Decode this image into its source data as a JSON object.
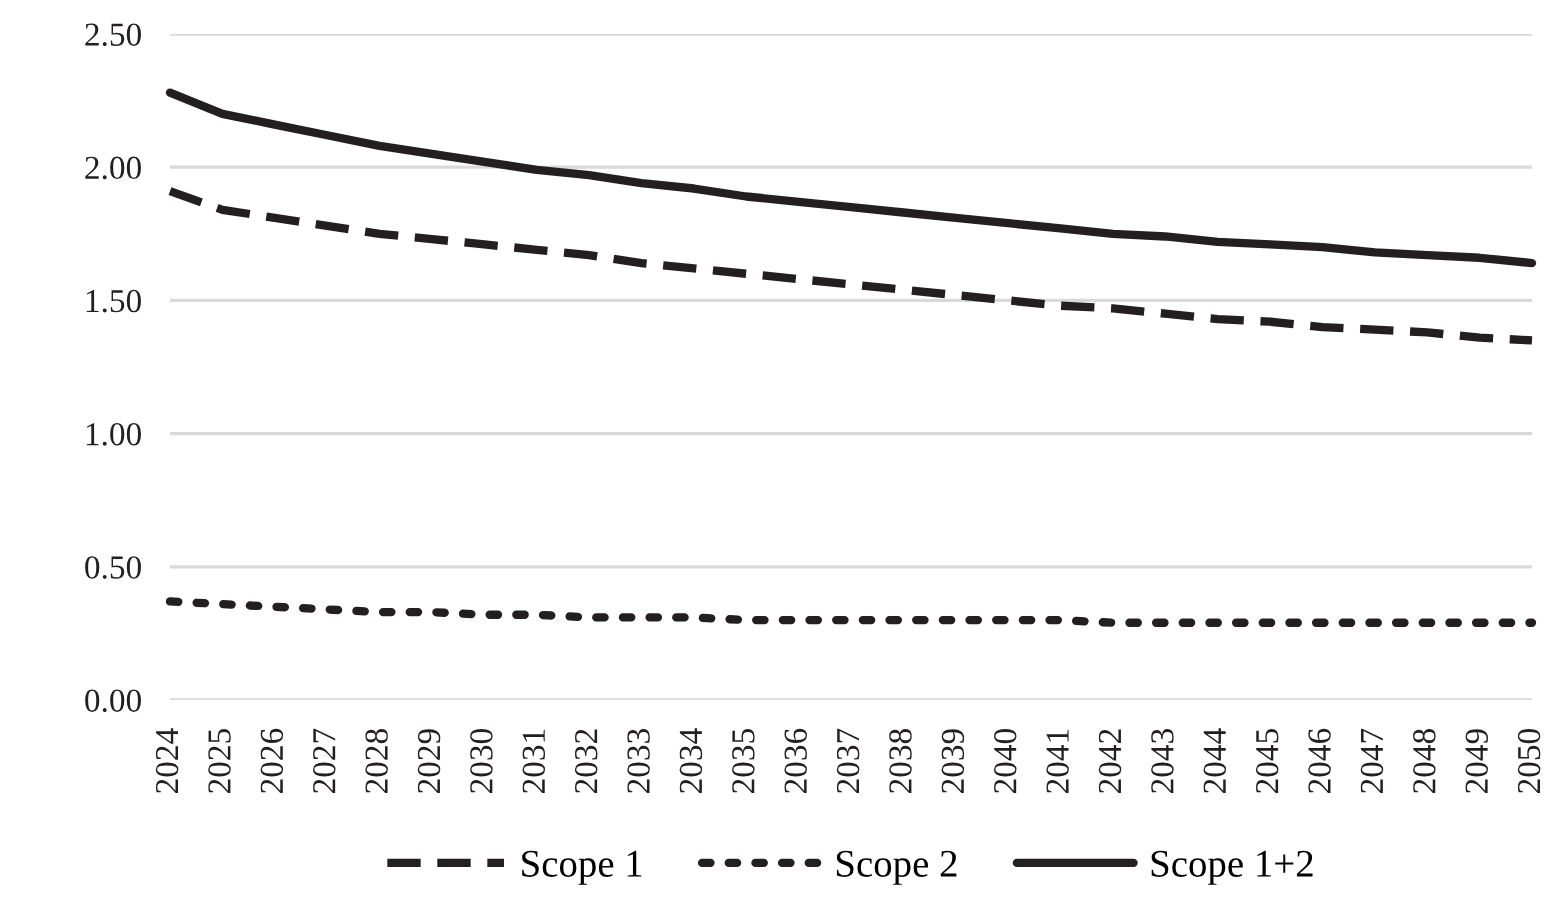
{
  "chart_data": {
    "type": "line",
    "categories": [
      "2024",
      "2025",
      "2026",
      "2027",
      "2028",
      "2029",
      "2030",
      "2031",
      "2032",
      "2033",
      "2034",
      "2035",
      "2036",
      "2037",
      "2038",
      "2039",
      "2040",
      "2041",
      "2042",
      "2043",
      "2044",
      "2045",
      "2046",
      "2047",
      "2048",
      "2049",
      "2050"
    ],
    "series": [
      {
        "name": "Scope 1",
        "color": "#231f20",
        "line_style": "dashed",
        "values": [
          1.91,
          1.84,
          1.81,
          1.78,
          1.75,
          1.73,
          1.71,
          1.69,
          1.67,
          1.64,
          1.62,
          1.6,
          1.58,
          1.56,
          1.54,
          1.52,
          1.5,
          1.48,
          1.47,
          1.45,
          1.43,
          1.42,
          1.4,
          1.39,
          1.38,
          1.36,
          1.35
        ]
      },
      {
        "name": "Scope 2",
        "color": "#231f20",
        "line_style": "dotted",
        "values": [
          0.37,
          0.36,
          0.35,
          0.34,
          0.33,
          0.33,
          0.32,
          0.32,
          0.31,
          0.31,
          0.31,
          0.3,
          0.3,
          0.3,
          0.3,
          0.3,
          0.3,
          0.3,
          0.29,
          0.29,
          0.29,
          0.29,
          0.29,
          0.29,
          0.29,
          0.29,
          0.29
        ]
      },
      {
        "name": "Scope 1+2",
        "color": "#231f20",
        "line_style": "solid",
        "values": [
          2.28,
          2.2,
          2.16,
          2.12,
          2.08,
          2.05,
          2.02,
          1.99,
          1.97,
          1.94,
          1.92,
          1.89,
          1.87,
          1.85,
          1.83,
          1.81,
          1.79,
          1.77,
          1.75,
          1.74,
          1.72,
          1.71,
          1.7,
          1.68,
          1.67,
          1.66,
          1.64
        ]
      }
    ],
    "ylim": [
      0,
      2.5
    ],
    "yticks": [
      {
        "value": 0,
        "label": "0.00"
      },
      {
        "value": 0.5,
        "label": "0.50"
      },
      {
        "value": 1,
        "label": "1.00"
      },
      {
        "value": 1.5,
        "label": "1.50"
      },
      {
        "value": 2,
        "label": "2.00"
      },
      {
        "value": 2.5,
        "label": "2.50"
      }
    ],
    "grid": "y",
    "legend": "bottom",
    "marker": "none"
  }
}
